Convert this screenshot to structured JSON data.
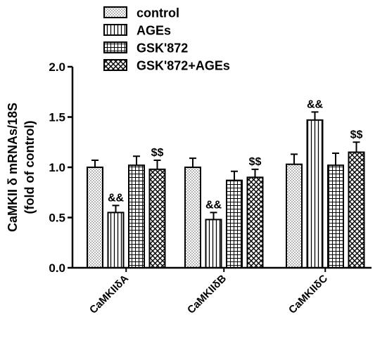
{
  "chart_data": {
    "type": "bar",
    "title": "",
    "xlabel": "",
    "ylabel_line1": "CaMKII δ  mRNAs/18S",
    "ylabel_line2": "(fold of control)",
    "ylim": [
      0,
      2.0
    ],
    "yticks": [
      "0.0",
      "0.5",
      "1.0",
      "1.5",
      "2.0"
    ],
    "categories": [
      "CaMKIIδA",
      "CaMKIIδB",
      "CaMKIIδC"
    ],
    "legend_position": "top",
    "grid": false,
    "series": [
      {
        "name": "control",
        "pattern": "dots",
        "values": [
          1.0,
          1.0,
          1.03
        ],
        "errors": [
          0.07,
          0.09,
          0.1
        ],
        "labels": [
          "",
          "",
          ""
        ]
      },
      {
        "name": "AGEs",
        "pattern": "vlines",
        "values": [
          0.55,
          0.48,
          1.47
        ],
        "errors": [
          0.07,
          0.07,
          0.08
        ],
        "labels": [
          "&&",
          "&&",
          "&&"
        ]
      },
      {
        "name": "GSK'872",
        "pattern": "grid",
        "values": [
          1.02,
          0.87,
          1.02
        ],
        "errors": [
          0.09,
          0.09,
          0.12
        ],
        "labels": [
          "",
          "",
          ""
        ]
      },
      {
        "name": "GSK'872+AGEs",
        "pattern": "cross",
        "values": [
          0.98,
          0.9,
          1.15
        ],
        "errors": [
          0.09,
          0.08,
          0.1
        ],
        "labels": [
          "$$",
          "$$",
          "$$"
        ]
      }
    ]
  }
}
